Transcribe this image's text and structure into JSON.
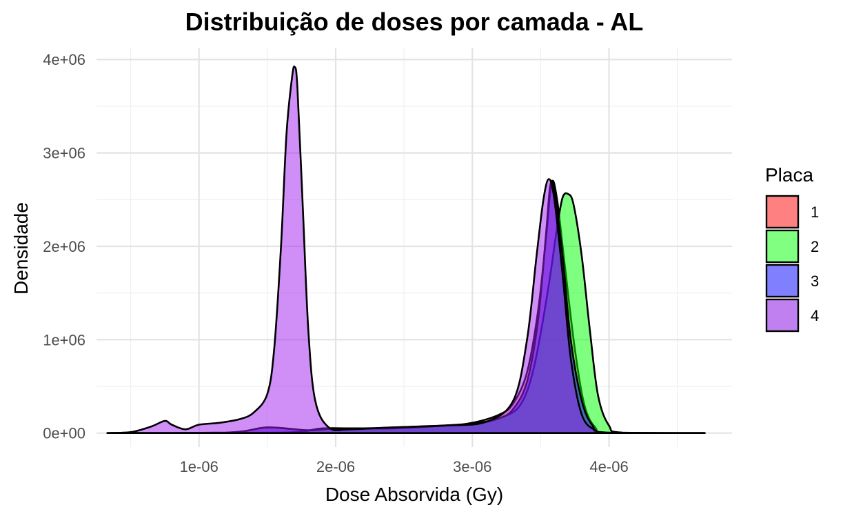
{
  "chart_data": {
    "type": "area",
    "title": "Distribuição de doses por camada - AL",
    "xlabel": "Dose Absorvida (Gy)",
    "ylabel": "Densidade",
    "xlim": [
      2.5e-07,
      4.9e-06
    ],
    "ylim": [
      -150000,
      4120000
    ],
    "x_ticks": [
      1e-06,
      2e-06,
      3e-06,
      4e-06
    ],
    "x_tick_labels": [
      "1e-06",
      "2e-06",
      "3e-06",
      "4e-06"
    ],
    "y_ticks": [
      0,
      1000000,
      2000000,
      3000000,
      4000000
    ],
    "y_tick_labels": [
      "0e+00",
      "1e+06",
      "2e+06",
      "3e+06",
      "4e+06"
    ],
    "grid": true,
    "legend": {
      "title": "Placa",
      "position": "right"
    },
    "series": [
      {
        "name": "1",
        "color": "#F8766D",
        "fill": "#FF8080",
        "x": [
          3.3e-07,
          1.2e-06,
          1.5e-06,
          1.8e-06,
          2e-06,
          2.4e-06,
          2.8e-06,
          3e-06,
          3.2e-06,
          3.3e-06,
          3.4e-06,
          3.48e-06,
          3.54e-06,
          3.58e-06,
          3.62e-06,
          3.68e-06,
          3.75e-06,
          3.82e-06,
          3.9e-06,
          4e-06,
          4.7e-06
        ],
        "y": [
          0,
          5000,
          60000,
          30000,
          50000,
          50000,
          80000,
          110000,
          200000,
          320000,
          650000,
          1300000,
          2100000,
          2680000,
          2500000,
          1750000,
          900000,
          300000,
          60000,
          5000,
          0
        ]
      },
      {
        "name": "2",
        "color": "#00FF00",
        "fill": "#80FF80",
        "x": [
          3.3e-07,
          1.6e-06,
          1.9e-06,
          2.2e-06,
          2.6e-06,
          3e-06,
          3.2e-06,
          3.35e-06,
          3.45e-06,
          3.55e-06,
          3.62e-06,
          3.66e-06,
          3.7e-06,
          3.74e-06,
          3.8e-06,
          3.86e-06,
          3.92e-06,
          4e-06,
          4.1e-06,
          4.7e-06
        ],
        "y": [
          0,
          5000,
          50000,
          50000,
          70000,
          100000,
          160000,
          300000,
          700000,
          1500000,
          2200000,
          2520000,
          2560000,
          2450000,
          1900000,
          1100000,
          400000,
          80000,
          5000,
          0
        ]
      },
      {
        "name": "3",
        "color": "#0000FF",
        "fill": "#8080FF",
        "x": [
          3.3e-07,
          1.2e-06,
          1.5e-06,
          1.8e-06,
          2e-06,
          2.4e-06,
          2.8e-06,
          3e-06,
          3.2e-06,
          3.3e-06,
          3.4e-06,
          3.48e-06,
          3.54e-06,
          3.57e-06,
          3.6e-06,
          3.66e-06,
          3.72e-06,
          3.8e-06,
          3.88e-06,
          3.98e-06,
          4.7e-06
        ],
        "y": [
          0,
          5000,
          60000,
          30000,
          50000,
          50000,
          80000,
          100000,
          160000,
          260000,
          550000,
          1200000,
          2150000,
          2650000,
          2600000,
          1900000,
          1000000,
          350000,
          80000,
          5000,
          0
        ]
      },
      {
        "name": "4",
        "color": "#A020F0",
        "fill": "#C080F0",
        "x": [
          3.3e-07,
          5e-07,
          6.5e-07,
          7.5e-07,
          8e-07,
          9e-07,
          1e-06,
          1.15e-06,
          1.3e-06,
          1.4e-06,
          1.5e-06,
          1.55e-06,
          1.6e-06,
          1.64e-06,
          1.68e-06,
          1.7e-06,
          1.72e-06,
          1.76e-06,
          1.8e-06,
          1.85e-06,
          1.95e-06,
          2.1e-06,
          2.4e-06,
          2.8e-06,
          3.1e-06,
          3.3e-06,
          3.4e-06,
          3.47e-06,
          3.52e-06,
          3.56e-06,
          3.6e-06,
          3.66e-06,
          3.72e-06,
          3.8e-06,
          3.9e-06,
          4e-06,
          4.7e-06
        ],
        "y": [
          0,
          10000,
          70000,
          130000,
          90000,
          40000,
          90000,
          110000,
          150000,
          220000,
          420000,
          900000,
          2000000,
          3200000,
          3800000,
          3920000,
          3700000,
          2400000,
          1100000,
          350000,
          60000,
          40000,
          60000,
          80000,
          120000,
          350000,
          1000000,
          1900000,
          2500000,
          2720000,
          2500000,
          1700000,
          800000,
          200000,
          30000,
          3000,
          0
        ]
      }
    ]
  }
}
